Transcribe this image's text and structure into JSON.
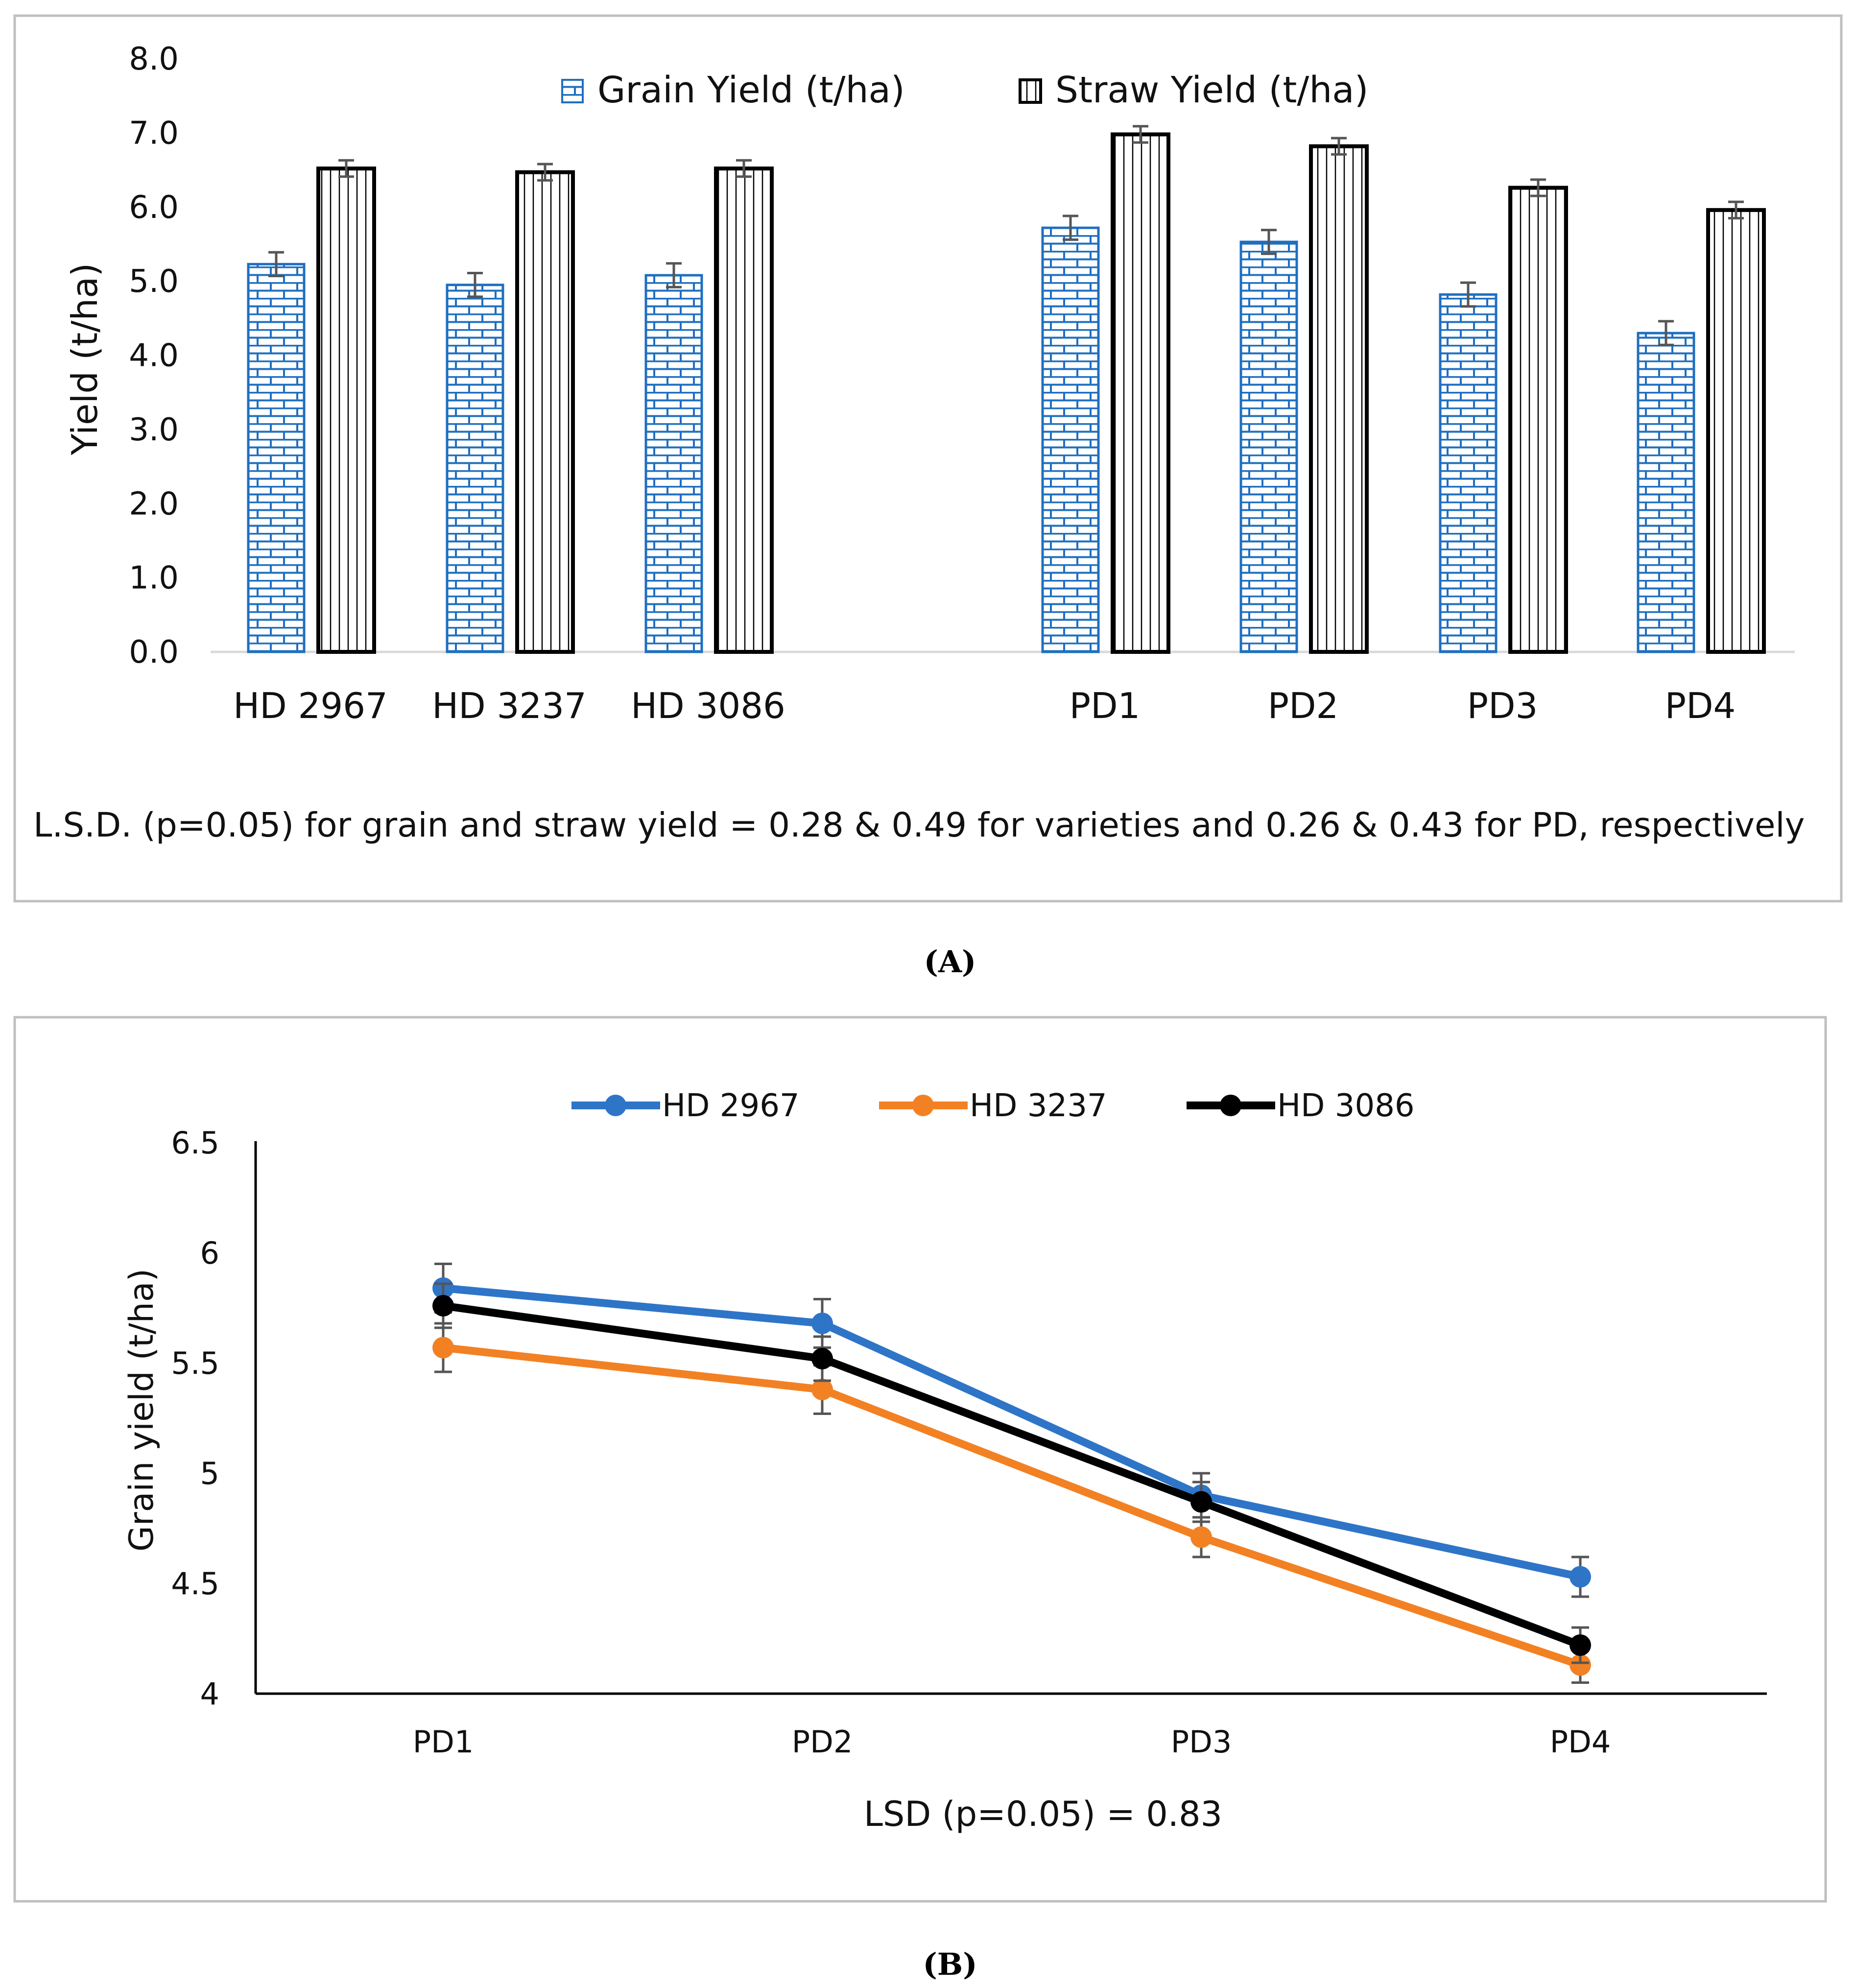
{
  "chart_data": [
    {
      "type": "bar",
      "title": "",
      "xlabel": "",
      "ylabel": "Yield (t/ha)",
      "ylim": [
        0,
        8
      ],
      "yticks": [
        "0.0",
        "1.0",
        "2.0",
        "3.0",
        "4.0",
        "5.0",
        "6.0",
        "7.0",
        "8.0"
      ],
      "categories": [
        "HD 2967",
        "HD 3237",
        "HD 3086",
        "PD1",
        "PD2",
        "PD3",
        "PD4"
      ],
      "series": [
        {
          "name": "Grain Yield (t/ha)",
          "values": [
            5.23,
            4.95,
            5.08,
            5.72,
            5.53,
            4.82,
            4.3
          ],
          "error": [
            0.16,
            0.16,
            0.16,
            0.16,
            0.16,
            0.16,
            0.16
          ],
          "color": "#1f6fc0",
          "pattern": "brick"
        },
        {
          "name": "Straw Yield (t/ha)",
          "values": [
            6.52,
            6.47,
            6.52,
            6.98,
            6.82,
            6.26,
            5.96
          ],
          "error": [
            0.11,
            0.11,
            0.11,
            0.11,
            0.11,
            0.11,
            0.11
          ],
          "color": "#000000",
          "pattern": "vertical-lines"
        }
      ],
      "legend_position": "top-center",
      "note": "L.S.D. (p=0.05) for grain and straw yield = 0.28 & 0.49 for varieties and 0.26 & 0.43 for PD, respectively",
      "caption": "(A)"
    },
    {
      "type": "line",
      "title": "",
      "xlabel": "",
      "ylabel": "Grain yield (t/ha)",
      "ylim": [
        4,
        6.5
      ],
      "yticks": [
        "4",
        "4.5",
        "5",
        "5.5",
        "6",
        "6.5"
      ],
      "categories": [
        "PD1",
        "PD2",
        "PD3",
        "PD4"
      ],
      "series": [
        {
          "name": "HD 2967",
          "values": [
            5.84,
            5.68,
            4.9,
            4.53
          ],
          "error": [
            0.11,
            0.11,
            0.1,
            0.09
          ],
          "color": "#2e75c8"
        },
        {
          "name": "HD 3237",
          "values": [
            5.57,
            5.38,
            4.71,
            4.13
          ],
          "error": [
            0.11,
            0.11,
            0.09,
            0.08
          ],
          "color": "#f28124"
        },
        {
          "name": "HD 3086",
          "values": [
            5.76,
            5.52,
            4.87,
            4.22
          ],
          "error": [
            0.1,
            0.1,
            0.09,
            0.08
          ],
          "color": "#000000"
        }
      ],
      "legend_position": "top-center",
      "note": "LSD (p=0.05) = 0.83",
      "caption": "(B)"
    }
  ]
}
